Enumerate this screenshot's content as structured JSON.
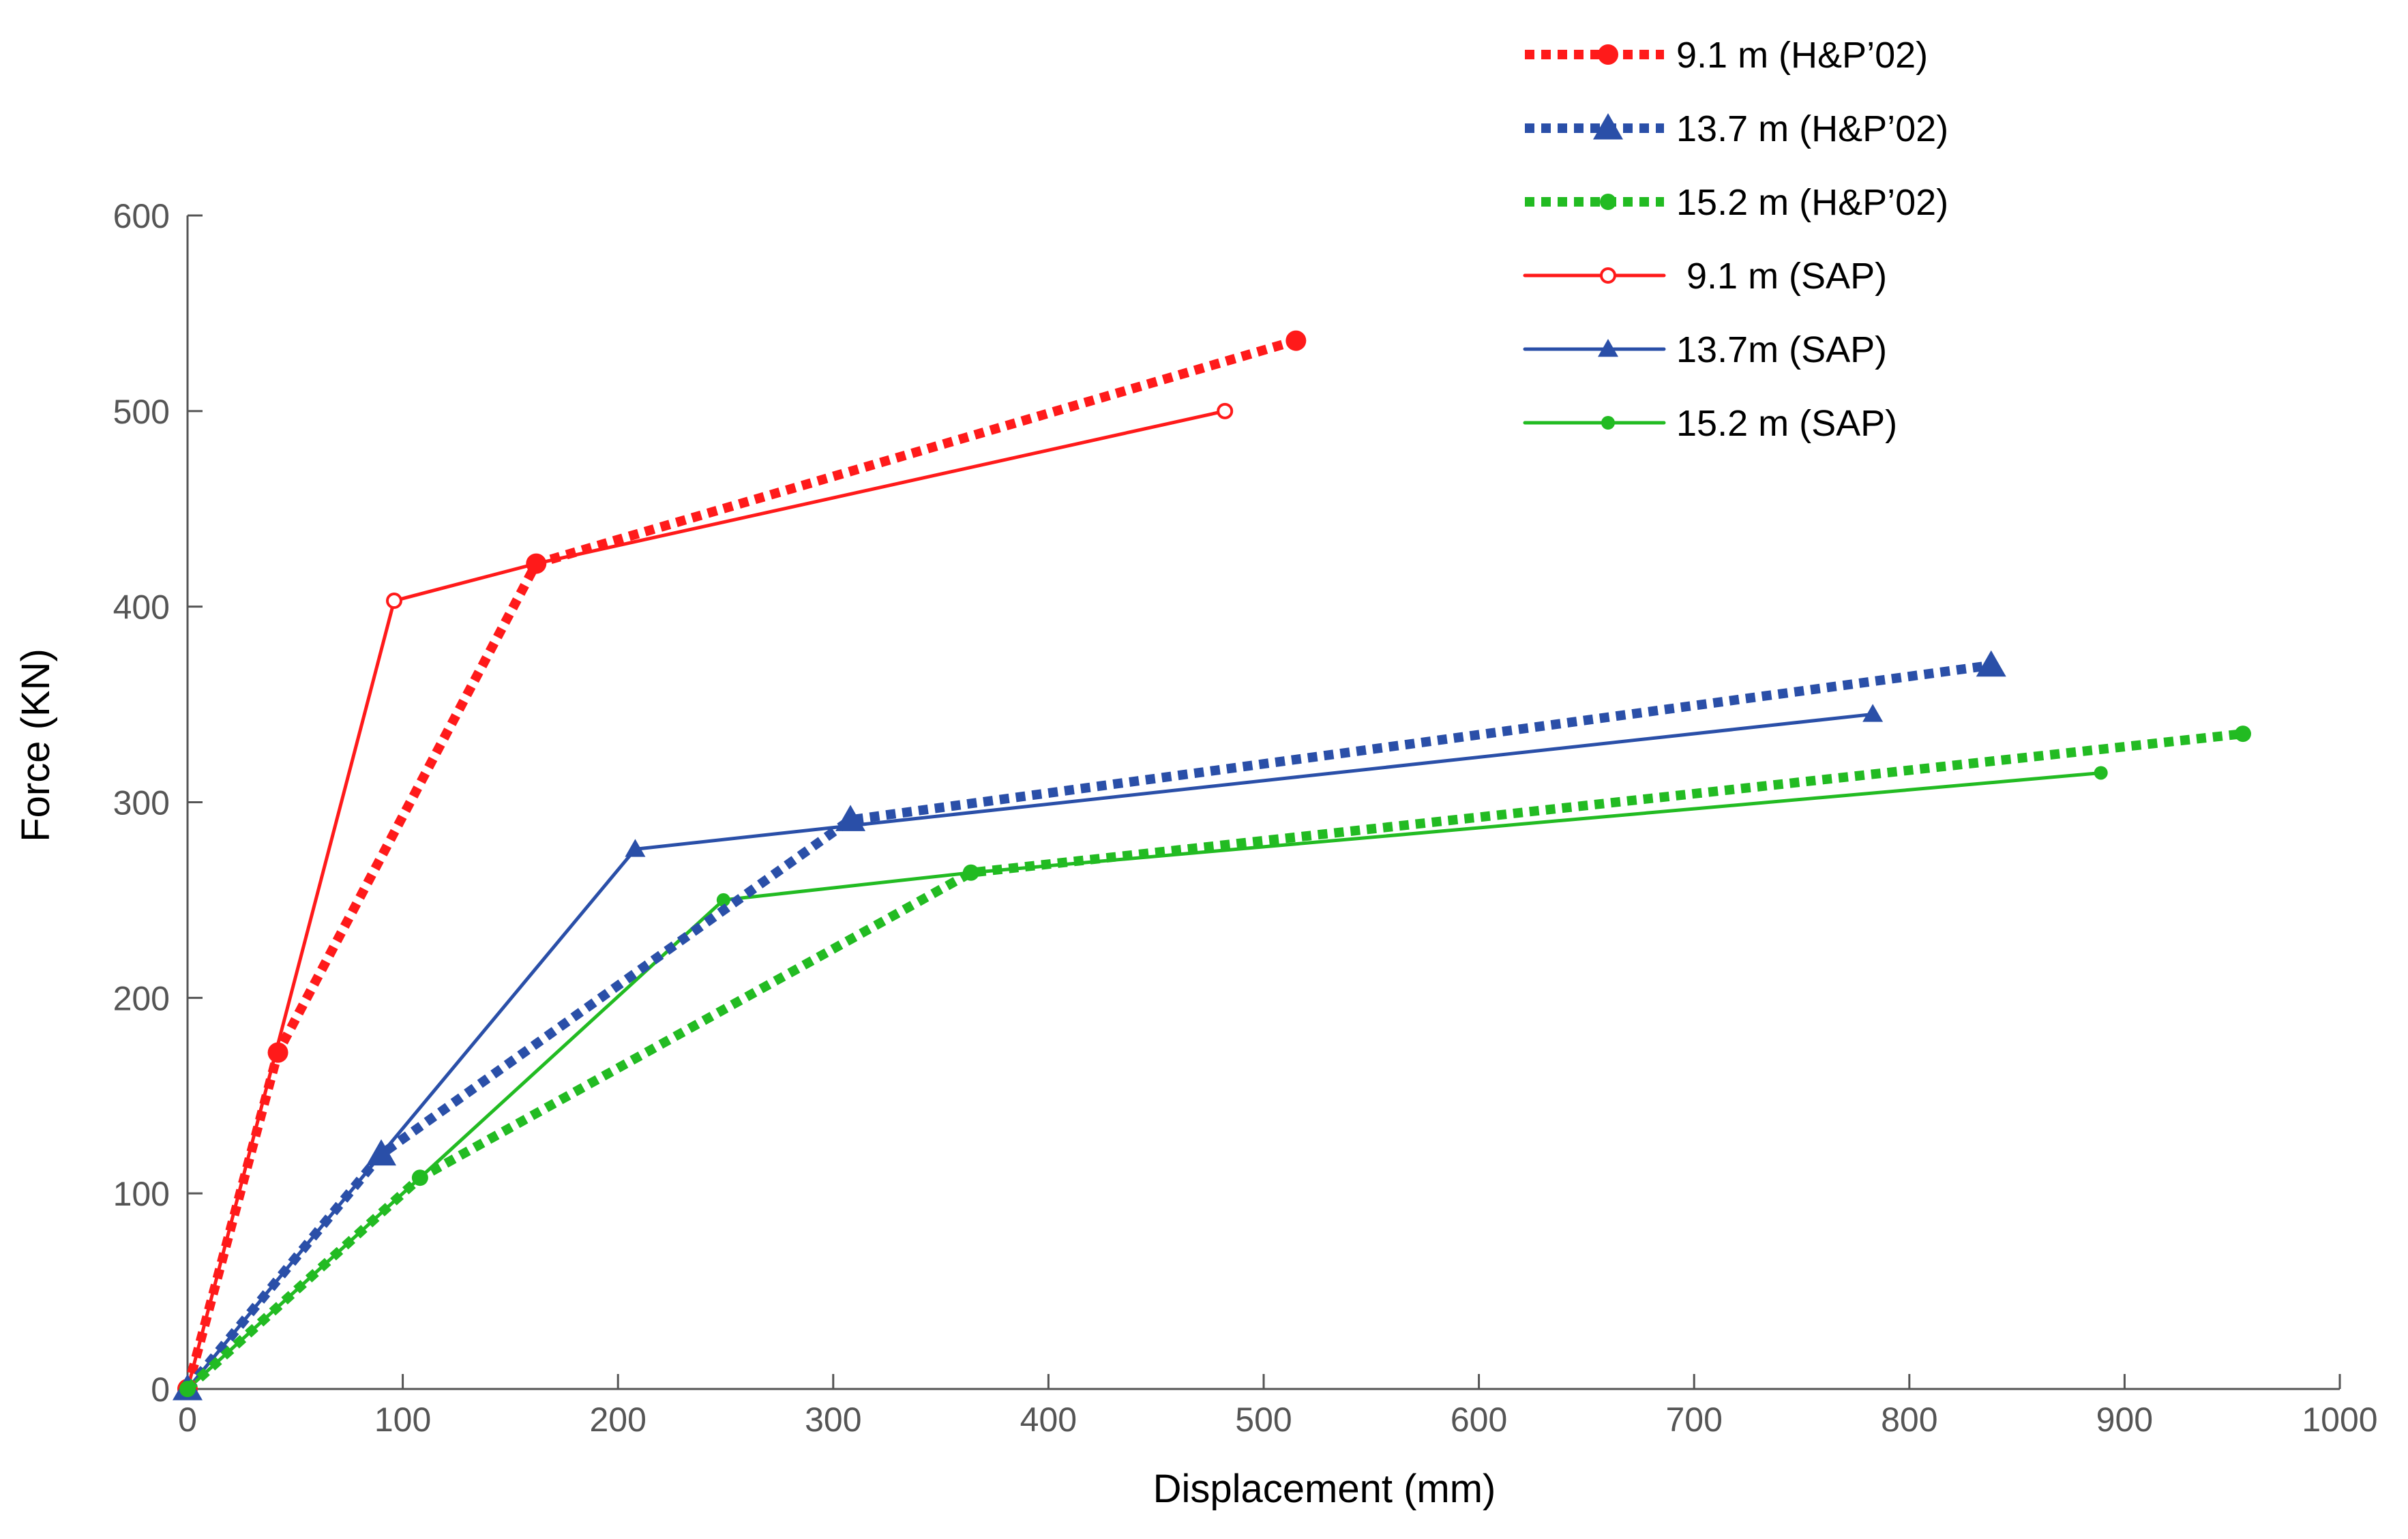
{
  "chart_data": {
    "type": "line",
    "title": "",
    "xlabel": "Displacement (mm)",
    "ylabel": "Force (KN)",
    "xlim": [
      0,
      1000
    ],
    "ylim": [
      0,
      600
    ],
    "xticks": [
      0,
      100,
      200,
      300,
      400,
      500,
      600,
      700,
      800,
      900,
      1000
    ],
    "yticks": [
      0,
      100,
      200,
      300,
      400,
      500,
      600
    ],
    "grid": false,
    "legend_position": "top-right",
    "series": [
      {
        "name": "9.1 m (H&P’02)",
        "color": "#ff1a1a",
        "line_style": "dotted",
        "marker": "filled-circle",
        "points": [
          [
            0,
            0
          ],
          [
            42,
            172
          ],
          [
            162,
            422
          ],
          [
            515,
            536
          ]
        ]
      },
      {
        "name": "13.7 m (H&P’02)",
        "color": "#2a4fa8",
        "line_style": "dotted",
        "marker": "filled-triangle",
        "points": [
          [
            0,
            0
          ],
          [
            90,
            120
          ],
          [
            308,
            291
          ],
          [
            838,
            370
          ]
        ]
      },
      {
        "name": "15.2 m (H&P’02)",
        "color": "#22bb22",
        "line_style": "dotted",
        "marker": "filled-small-circle",
        "points": [
          [
            0,
            0
          ],
          [
            108,
            108
          ],
          [
            364,
            264
          ],
          [
            955,
            335
          ]
        ]
      },
      {
        "name": " 9.1 m (SAP)",
        "color": "#ff1a1a",
        "line_style": "solid",
        "marker": "open-circle",
        "points": [
          [
            0,
            0
          ],
          [
            96,
            403
          ],
          [
            162,
            422
          ],
          [
            482,
            500
          ]
        ]
      },
      {
        "name": "13.7m (SAP)",
        "color": "#2a4fa8",
        "line_style": "solid",
        "marker": "small-triangle",
        "points": [
          [
            0,
            0
          ],
          [
            90,
            120
          ],
          [
            208,
            276
          ],
          [
            783,
            345
          ]
        ]
      },
      {
        "name": "15.2 m (SAP)",
        "color": "#22bb22",
        "line_style": "solid",
        "marker": "small-circle",
        "points": [
          [
            0,
            0
          ],
          [
            108,
            108
          ],
          [
            249,
            250
          ],
          [
            364,
            264
          ],
          [
            889,
            315
          ]
        ]
      }
    ]
  }
}
